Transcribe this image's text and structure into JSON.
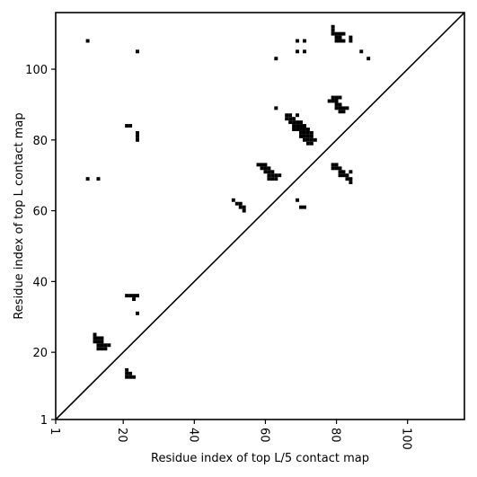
{
  "chart_data": {
    "type": "scatter",
    "title": "",
    "xlabel": "Residue index of top L/5 contact map",
    "ylabel": "Residue index of top L contact map",
    "xlim": [
      1,
      116
    ],
    "ylim": [
      1,
      116
    ],
    "xticks": [
      1,
      20,
      40,
      60,
      80,
      100
    ],
    "yticks": [
      1,
      20,
      40,
      60,
      80,
      100
    ],
    "xtick_labels": [
      "1",
      "20",
      "40",
      "60",
      "80",
      "100"
    ],
    "ytick_labels": [
      "1",
      "20",
      "40",
      "60",
      "80",
      "100"
    ],
    "grid": false,
    "diagonal": true,
    "marker": "square",
    "color": "#000000",
    "points": [
      [
        10,
        108
      ],
      [
        24,
        105
      ],
      [
        10,
        69
      ],
      [
        13,
        69
      ],
      [
        21,
        84
      ],
      [
        22,
        84
      ],
      [
        24,
        82
      ],
      [
        24,
        81
      ],
      [
        24,
        80
      ],
      [
        21,
        36
      ],
      [
        22,
        36
      ],
      [
        23,
        36
      ],
      [
        24,
        36
      ],
      [
        23,
        35
      ],
      [
        24,
        31
      ],
      [
        12,
        25
      ],
      [
        12,
        24
      ],
      [
        13,
        24
      ],
      [
        14,
        24
      ],
      [
        12,
        23
      ],
      [
        13,
        23
      ],
      [
        14,
        23
      ],
      [
        13,
        22
      ],
      [
        14,
        22
      ],
      [
        15,
        22
      ],
      [
        16,
        22
      ],
      [
        13,
        21
      ],
      [
        14,
        21
      ],
      [
        15,
        21
      ],
      [
        21,
        15
      ],
      [
        21,
        14
      ],
      [
        22,
        14
      ],
      [
        21,
        13
      ],
      [
        22,
        13
      ],
      [
        23,
        13
      ],
      [
        51,
        63
      ],
      [
        52,
        62
      ],
      [
        53,
        62
      ],
      [
        53,
        61
      ],
      [
        54,
        61
      ],
      [
        54,
        60
      ],
      [
        58,
        73
      ],
      [
        59,
        73
      ],
      [
        60,
        73
      ],
      [
        59,
        72
      ],
      [
        60,
        72
      ],
      [
        61,
        72
      ],
      [
        60,
        71
      ],
      [
        61,
        71
      ],
      [
        62,
        71
      ],
      [
        61,
        70
      ],
      [
        62,
        70
      ],
      [
        63,
        70
      ],
      [
        64,
        70
      ],
      [
        61,
        69
      ],
      [
        62,
        69
      ],
      [
        63,
        69
      ],
      [
        63,
        103
      ],
      [
        63,
        89
      ],
      [
        69,
        63
      ],
      [
        70,
        61
      ],
      [
        71,
        61
      ],
      [
        66,
        87
      ],
      [
        67,
        87
      ],
      [
        69,
        87
      ],
      [
        66,
        86
      ],
      [
        67,
        86
      ],
      [
        68,
        86
      ],
      [
        67,
        85
      ],
      [
        68,
        85
      ],
      [
        69,
        85
      ],
      [
        70,
        85
      ],
      [
        68,
        84
      ],
      [
        69,
        84
      ],
      [
        70,
        84
      ],
      [
        71,
        84
      ],
      [
        68,
        83
      ],
      [
        69,
        83
      ],
      [
        70,
        83
      ],
      [
        71,
        83
      ],
      [
        72,
        83
      ],
      [
        70,
        82
      ],
      [
        71,
        82
      ],
      [
        72,
        82
      ],
      [
        73,
        82
      ],
      [
        70,
        81
      ],
      [
        71,
        81
      ],
      [
        72,
        81
      ],
      [
        73,
        81
      ],
      [
        71,
        80
      ],
      [
        72,
        80
      ],
      [
        73,
        80
      ],
      [
        74,
        80
      ],
      [
        72,
        79
      ],
      [
        73,
        79
      ],
      [
        69,
        108
      ],
      [
        71,
        108
      ],
      [
        69,
        105
      ],
      [
        71,
        105
      ],
      [
        79,
        112
      ],
      [
        79,
        111
      ],
      [
        79,
        110
      ],
      [
        80,
        110
      ],
      [
        81,
        110
      ],
      [
        82,
        110
      ],
      [
        80,
        109
      ],
      [
        81,
        109
      ],
      [
        80,
        108
      ],
      [
        81,
        108
      ],
      [
        82,
        108
      ],
      [
        84,
        109
      ],
      [
        84,
        108
      ],
      [
        87,
        105
      ],
      [
        89,
        103
      ],
      [
        78,
        91
      ],
      [
        79,
        91
      ],
      [
        80,
        91
      ],
      [
        79,
        92
      ],
      [
        80,
        92
      ],
      [
        81,
        92
      ],
      [
        80,
        90
      ],
      [
        81,
        90
      ],
      [
        80,
        89
      ],
      [
        81,
        89
      ],
      [
        82,
        89
      ],
      [
        83,
        89
      ],
      [
        81,
        88
      ],
      [
        82,
        88
      ],
      [
        79,
        73
      ],
      [
        80,
        73
      ],
      [
        79,
        72
      ],
      [
        80,
        72
      ],
      [
        81,
        72
      ],
      [
        81,
        71
      ],
      [
        82,
        71
      ],
      [
        84,
        71
      ],
      [
        81,
        70
      ],
      [
        82,
        70
      ],
      [
        83,
        70
      ],
      [
        83,
        69
      ],
      [
        84,
        69
      ],
      [
        84,
        68
      ]
    ]
  }
}
